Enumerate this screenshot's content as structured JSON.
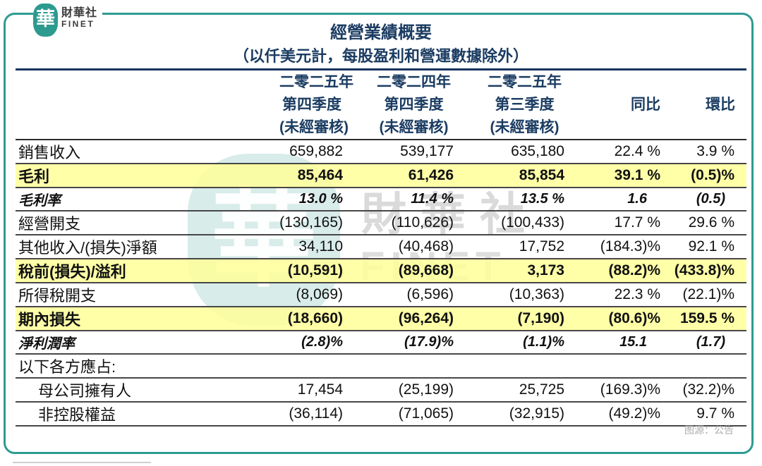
{
  "brand": {
    "emblem_char": "華",
    "name_cn": "財華社",
    "name_en": "FINET"
  },
  "title": {
    "line1": "經營業績概要",
    "line2": "（以仟美元計，每股盈利和營運數據除外）"
  },
  "table": {
    "col_headers": [
      {
        "type": "year",
        "lines": [
          "二零二五年",
          "第四季度",
          "(未經審核)"
        ]
      },
      {
        "type": "year",
        "lines": [
          "二零二四年",
          "第四季度",
          "(未經審核)"
        ]
      },
      {
        "type": "year",
        "lines": [
          "二零二五年",
          "第三季度",
          "(未經審核)"
        ]
      },
      {
        "type": "ratio4",
        "lines": [
          "",
          "同比",
          ""
        ]
      },
      {
        "type": "ratio",
        "lines": [
          "",
          "環比",
          ""
        ]
      }
    ],
    "rows": [
      {
        "label": "銷售收入",
        "style": "normal",
        "values": [
          "659,882",
          "539,177",
          "635,180",
          "22.4 %",
          "3.9 %"
        ]
      },
      {
        "label": "毛利",
        "style": "highlight",
        "values": [
          "85,464",
          "61,426",
          "85,854",
          "39.1 %",
          "(0.5)%"
        ]
      },
      {
        "label": "毛利率",
        "style": "rate",
        "values": [
          "13.0 %",
          "11.4 %",
          "13.5 %",
          "1.6",
          "(0.5)"
        ]
      },
      {
        "label": "經營開支",
        "style": "normal",
        "values": [
          "(130,165)",
          "(110,626)",
          "(100,433)",
          "17.7 %",
          "29.6 %"
        ]
      },
      {
        "label": "其他收入/(損失)淨額",
        "style": "normal",
        "values": [
          "34,110",
          "(40,468)",
          "17,752",
          "(184.3)%",
          "92.1 %"
        ]
      },
      {
        "label": "稅前(損失)/溢利",
        "style": "highlight",
        "values": [
          "(10,591)",
          "(89,668)",
          "3,173",
          "(88.2)%",
          "(433.8)%"
        ]
      },
      {
        "label": "所得稅開支",
        "style": "normal",
        "values": [
          "(8,069)",
          "(6,596)",
          "(10,363)",
          "22.3 %",
          "(22.1)%"
        ]
      },
      {
        "label": "期內損失",
        "style": "highlight",
        "values": [
          "(18,660)",
          "(96,264)",
          "(7,190)",
          "(80.6)%",
          "159.5 %"
        ]
      },
      {
        "label": "淨利潤率",
        "style": "rate",
        "values": [
          "(2.8)%",
          "(17.9)%",
          "(1.1)%",
          "15.1",
          "(1.7)"
        ]
      },
      {
        "label": "以下各方應占:",
        "style": "section",
        "values": [
          "",
          "",
          "",
          "",
          ""
        ]
      },
      {
        "label": "母公司擁有人",
        "style": "indent",
        "values": [
          "17,454",
          "(25,199)",
          "25,725",
          "(169.3)%",
          "(32.2)%"
        ]
      },
      {
        "label": "非控股權益",
        "style": "indent",
        "values": [
          "(36,114)",
          "(71,065)",
          "(32,915)",
          "(49.2)%",
          "9.7 %"
        ]
      }
    ]
  },
  "watermark": {
    "emblem_char": "華",
    "text_cn": "財華社",
    "text_en": "FINET"
  },
  "footer": {
    "source_note": "图源：公告"
  },
  "colors": {
    "accent_teal": "#2E9B92",
    "navy": "#17375E",
    "highlight_yellow": "#FFFF99",
    "source_gray": "#ABABAB"
  }
}
